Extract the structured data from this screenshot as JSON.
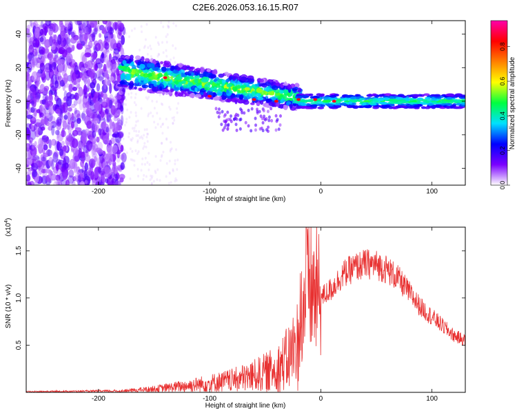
{
  "title": "C2E6.2026.053.16.15.R07",
  "chart_data": [
    {
      "type": "heatmap",
      "xlabel": "Height of straight line (km)",
      "ylabel": "Frequency (Hz)",
      "xlim": [
        -265,
        130
      ],
      "ylim": [
        -50,
        48
      ],
      "x_ticks": [
        -200,
        -100,
        0,
        100
      ],
      "x_tick_labels": [
        "-200",
        "-100",
        "0",
        "100"
      ],
      "y_ticks": [
        -40,
        -20,
        0,
        20,
        40
      ],
      "y_tick_labels": [
        "-40",
        "-20",
        "0",
        "20",
        "40"
      ],
      "colorbar": {
        "label": "Normalized spectral amplitude",
        "range": [
          0,
          0.95
        ],
        "ticks": [
          0,
          0.2,
          0.4,
          0.6,
          0.8
        ],
        "tick_labels": [
          "0.0",
          "0.2",
          "0.4",
          "0.6",
          "0.8"
        ],
        "colors": [
          "#ffffff",
          "#7a00ff",
          "#0000ff",
          "#00e0ff",
          "#00ff40",
          "#ffff00",
          "#ff8000",
          "#ff0000",
          "#ff00aa"
        ]
      },
      "regions": [
        {
          "name": "noise",
          "x_range": [
            -265,
            -175
          ],
          "freq_range": [
            -50,
            48
          ],
          "amplitude": 0.08
        },
        {
          "name": "head-echo",
          "x_range": [
            -180,
            -20
          ],
          "freq_center_start": 16,
          "freq_center_end": 0,
          "amplitude": 0.35
        },
        {
          "name": "trail",
          "x_range": [
            -20,
            130
          ],
          "freq_center": 0,
          "amplitude": 0.4
        }
      ]
    },
    {
      "type": "line",
      "xlabel": "Height of straight line (km)",
      "ylabel": "SNR (10 * v/v)",
      "multiplier_label": "(x10",
      "multiplier_exponent": "4",
      "multiplier_close": ")",
      "xlim": [
        -265,
        130
      ],
      "ylim": [
        0,
        1.75
      ],
      "x_ticks": [
        -200,
        -100,
        0,
        100
      ],
      "x_tick_labels": [
        "-200",
        "-100",
        "0",
        "100"
      ],
      "y_ticks": [
        0.5,
        1.0,
        1.5
      ],
      "y_tick_labels": [
        "0.5",
        "1.0",
        "1.5"
      ],
      "color": "#e83030",
      "envelope": {
        "x": [
          -265,
          -180,
          -150,
          -120,
          -100,
          -80,
          -60,
          -40,
          -30,
          -20,
          -15,
          -10,
          0,
          10,
          20,
          30,
          40,
          50,
          60,
          70,
          80,
          90,
          100,
          110,
          120,
          130
        ],
        "y": [
          0.01,
          0.02,
          0.05,
          0.1,
          0.14,
          0.18,
          0.25,
          0.35,
          0.5,
          0.75,
          0.95,
          1.1,
          1.0,
          1.1,
          1.25,
          1.32,
          1.36,
          1.35,
          1.3,
          1.2,
          1.05,
          0.9,
          0.8,
          0.7,
          0.6,
          0.55
        ]
      }
    }
  ]
}
